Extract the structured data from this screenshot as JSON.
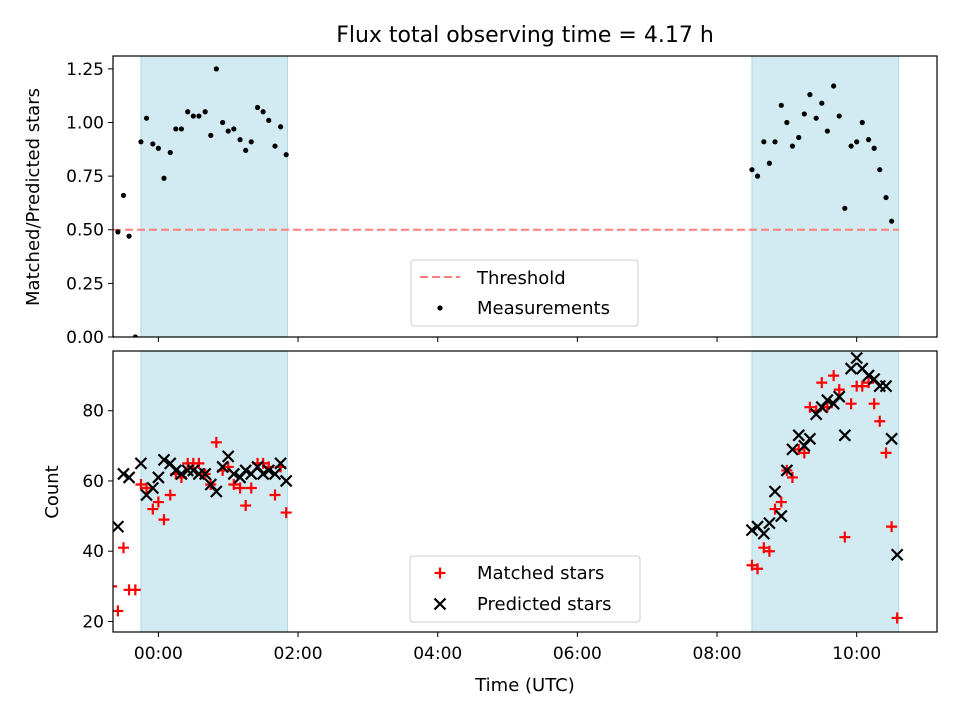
{
  "title": "Flux total observing time = 4.17 h",
  "colors": {
    "band": "#add8e6",
    "threshold": "#ff7f7f",
    "measurement": "#000000",
    "matched": "#ff0000",
    "predicted": "#000000"
  },
  "chart_data": [
    {
      "type": "scatter",
      "ylabel": "Matched/Predicted stars",
      "ylim": [
        0,
        1.31
      ],
      "xlim": [
        "-0.65",
        "11.15"
      ],
      "x_unit": "hours since 00:00 UTC",
      "yticks": [
        "0.00",
        "0.25",
        "0.50",
        "0.75",
        "1.00",
        "1.25"
      ],
      "shaded_intervals": [
        [
          "-0.25",
          "1.85"
        ],
        [
          "8.5",
          "10.6"
        ]
      ],
      "threshold": {
        "name": "Threshold",
        "y": 0.5,
        "x": [
          "-0.65",
          "10.6"
        ]
      },
      "legend": {
        "placement": "lower-center",
        "entries": [
          "Threshold",
          "Measurements"
        ]
      },
      "series": [
        {
          "name": "Measurements",
          "x": [
            -0.67,
            -0.58,
            -0.5,
            -0.42,
            -0.33,
            -0.25,
            -0.17,
            -0.08,
            0.0,
            0.08,
            0.17,
            0.25,
            0.33,
            0.42,
            0.5,
            0.58,
            0.67,
            0.75,
            0.83,
            0.92,
            1.0,
            1.08,
            1.17,
            1.25,
            1.33,
            1.42,
            1.5,
            1.58,
            1.67,
            1.75,
            1.83,
            8.5,
            8.58,
            8.67,
            8.75,
            8.83,
            8.92,
            9.0,
            9.08,
            9.17,
            9.25,
            9.33,
            9.42,
            9.5,
            9.58,
            9.67,
            9.75,
            9.83,
            9.92,
            10.0,
            10.08,
            10.17,
            10.25,
            10.33,
            10.42,
            10.5,
            10.58
          ],
          "y": [
            0.0,
            0.49,
            0.66,
            0.47,
            0.0,
            0.91,
            1.02,
            0.9,
            0.88,
            0.74,
            0.86,
            0.97,
            0.97,
            1.05,
            1.03,
            1.03,
            1.05,
            0.94,
            1.25,
            1.0,
            0.96,
            0.97,
            0.92,
            0.87,
            0.91,
            1.07,
            1.05,
            1.01,
            0.89,
            0.98,
            0.85,
            0.78,
            0.75,
            0.91,
            0.81,
            0.91,
            1.08,
            1.0,
            0.89,
            0.93,
            1.04,
            1.13,
            1.02,
            1.09,
            0.96,
            1.17,
            1.03,
            0.6,
            0.89,
            0.91,
            1.0,
            0.92,
            0.88,
            0.78,
            0.65,
            0.54,
            null
          ]
        }
      ]
    },
    {
      "type": "scatter",
      "xlabel": "Time (UTC)",
      "ylabel": "Count",
      "ylim": [
        17,
        97
      ],
      "xlim": [
        "-0.65",
        "11.15"
      ],
      "x_unit": "hours since 00:00 UTC",
      "xticks": [
        "00:00",
        "02:00",
        "04:00",
        "06:00",
        "08:00",
        "10:00"
      ],
      "yticks": [
        "20",
        "40",
        "60",
        "80"
      ],
      "shaded_intervals": [
        [
          "-0.25",
          "1.85"
        ],
        [
          "8.5",
          "10.6"
        ]
      ],
      "legend": {
        "placement": "lower-center",
        "entries": [
          "Matched stars",
          "Predicted stars"
        ]
      },
      "series": [
        {
          "name": "Matched stars",
          "x": [
            -0.67,
            -0.58,
            -0.5,
            -0.42,
            -0.33,
            -0.25,
            -0.17,
            -0.08,
            0.0,
            0.08,
            0.17,
            0.25,
            0.33,
            0.42,
            0.5,
            0.58,
            0.67,
            0.75,
            0.83,
            0.92,
            1.0,
            1.08,
            1.17,
            1.25,
            1.33,
            1.42,
            1.5,
            1.58,
            1.67,
            1.75,
            1.83,
            8.5,
            8.58,
            8.67,
            8.75,
            8.83,
            8.92,
            9.0,
            9.08,
            9.17,
            9.25,
            9.33,
            9.42,
            9.5,
            9.58,
            9.67,
            9.75,
            9.83,
            9.92,
            10.0,
            10.08,
            10.17,
            10.25,
            10.33,
            10.42,
            10.5,
            10.58
          ],
          "y": [
            30,
            23,
            41,
            29,
            29,
            59,
            58,
            52,
            54,
            49,
            56,
            62,
            61,
            65,
            65,
            65,
            62,
            59,
            71,
            63,
            64,
            59,
            58,
            53,
            58,
            65,
            65,
            64,
            56,
            64,
            51,
            36,
            35,
            41,
            40,
            52,
            54,
            63,
            61,
            69,
            68,
            81,
            80,
            88,
            81,
            90,
            86,
            44,
            82,
            87,
            87,
            88,
            82,
            77,
            68,
            47,
            21
          ]
        },
        {
          "name": "Predicted stars",
          "x": [
            -0.58,
            -0.5,
            -0.42,
            -0.25,
            -0.17,
            -0.08,
            0.0,
            0.08,
            0.17,
            0.25,
            0.33,
            0.42,
            0.5,
            0.58,
            0.67,
            0.75,
            0.83,
            0.92,
            1.0,
            1.08,
            1.17,
            1.25,
            1.33,
            1.42,
            1.5,
            1.58,
            1.67,
            1.75,
            1.83,
            8.5,
            8.58,
            8.67,
            8.75,
            8.83,
            8.92,
            9.0,
            9.08,
            9.17,
            9.25,
            9.33,
            9.42,
            9.5,
            9.58,
            9.67,
            9.75,
            9.83,
            9.92,
            10.0,
            10.08,
            10.17,
            10.25,
            10.33,
            10.42,
            10.5,
            10.58
          ],
          "y": [
            47,
            62,
            61,
            65,
            56,
            58,
            61,
            66,
            65,
            63,
            62,
            63,
            63,
            62,
            62,
            59,
            57,
            64,
            67,
            62,
            61,
            63,
            62,
            64,
            62,
            63,
            62,
            65,
            60,
            46,
            47,
            45,
            48,
            57,
            50,
            63,
            69,
            73,
            70,
            72,
            79,
            81,
            83,
            82,
            84,
            73,
            92,
            95,
            92,
            90,
            89,
            87,
            87,
            72,
            39
          ]
        }
      ]
    }
  ]
}
